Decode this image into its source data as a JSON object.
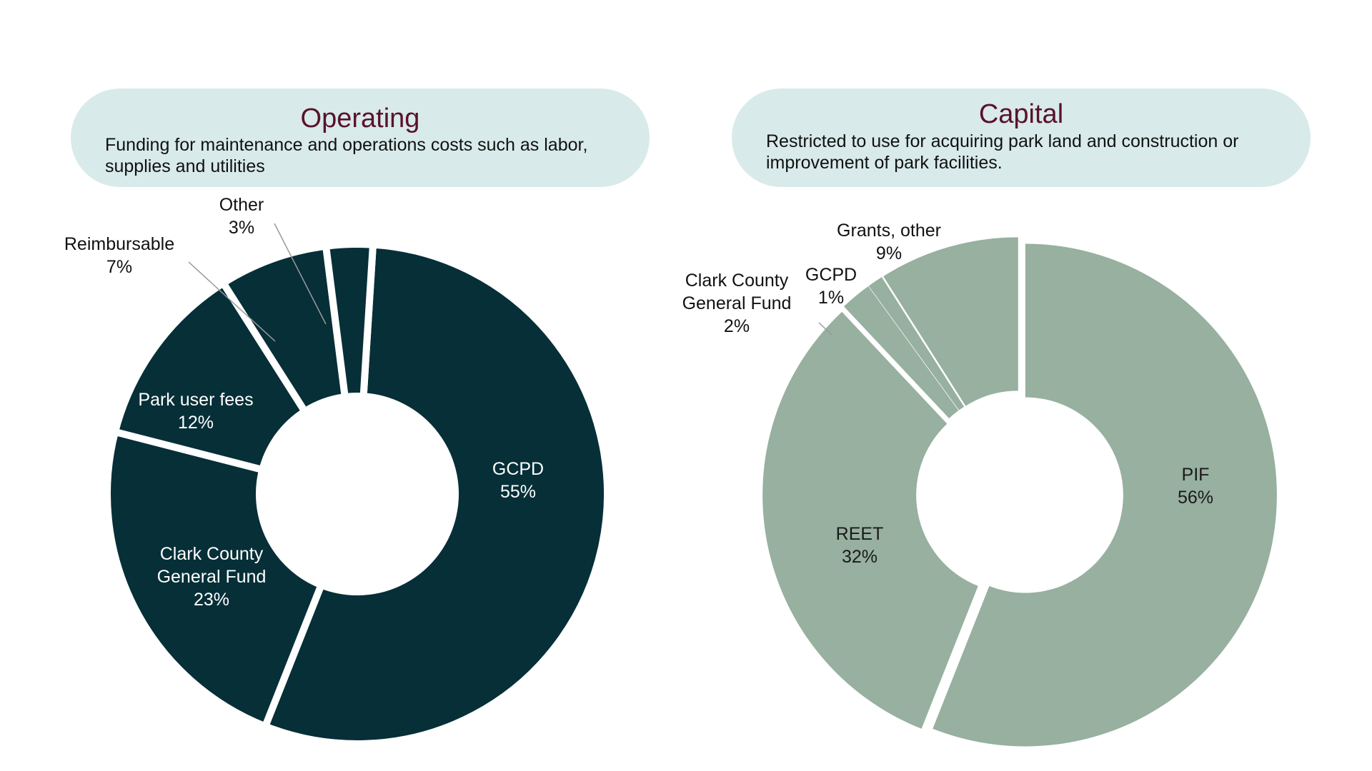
{
  "operating": {
    "title": "Operating",
    "description": "Funding for maintenance and operations costs such as labor, supplies and utilities"
  },
  "capital": {
    "title": "Capital",
    "description": "Restricted to use for acquiring park land and construction or improvement of park facilities."
  },
  "colors": {
    "header_bg": "#d8eaea",
    "title": "#5a1229",
    "operating_fill": "#062f38",
    "capital_fill": "#97b09f"
  },
  "chart_data": [
    {
      "type": "pie",
      "title": "Operating",
      "labels": [
        "GCPD",
        "Clark County General Fund",
        "Park user fees",
        "Reimbursable",
        "Other"
      ],
      "values": [
        55,
        23,
        12,
        7,
        3
      ],
      "value_labels": [
        "55%",
        "23%",
        "12%",
        "7%",
        "3%"
      ],
      "style": "donut"
    },
    {
      "type": "pie",
      "title": "Capital",
      "labels": [
        "PIF",
        "REET",
        "Clark County General Fund",
        "GCPD",
        "Grants, other"
      ],
      "values": [
        56,
        32,
        2,
        1,
        9
      ],
      "value_labels": [
        "56%",
        "32%",
        "2%",
        "1%",
        "9%"
      ],
      "style": "donut"
    }
  ]
}
